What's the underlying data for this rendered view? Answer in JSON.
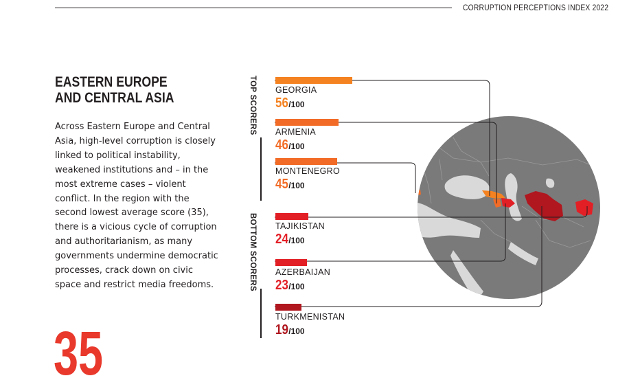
{
  "header": {
    "title": "CORRUPTION PERCEPTIONS INDEX 2022"
  },
  "section": {
    "title": "EASTERN EUROPE\nAND CENTRAL ASIA",
    "body": "Across Eastern Europe and Central Asia, high-level corruption is closely linked to political instability, weakened institutions and – in the most extreme cases – violent conflict. In the region with the second lowest average score (35), there is a vicious cycle of corruption and authoritarianism, as many governments undermine democratic processes, crack down on civic space and restrict media freedoms."
  },
  "page_number": "35",
  "top_scorers": {
    "label": "TOP SCORERS",
    "items": [
      {
        "country": "GEORGIA",
        "score": "56",
        "denominator": "/100",
        "value": 56,
        "color": "#f58220"
      },
      {
        "country": "ARMENIA",
        "score": "46",
        "denominator": "/100",
        "value": 46,
        "color": "#f26c27"
      },
      {
        "country": "MONTENEGRO",
        "score": "45",
        "denominator": "/100",
        "value": 45,
        "color": "#f26c27"
      }
    ]
  },
  "bottom_scorers": {
    "label": "BOTTOM SCORERS",
    "items": [
      {
        "country": "TAJIKISTAN",
        "score": "24",
        "denominator": "/100",
        "value": 24,
        "color": "#e31f26"
      },
      {
        "country": "AZERBAIJAN",
        "score": "23",
        "denominator": "/100",
        "value": 23,
        "color": "#e31f26"
      },
      {
        "country": "TURKMENISTAN",
        "score": "19",
        "denominator": "/100",
        "value": 19,
        "color": "#b0171f"
      }
    ]
  },
  "map": {
    "land_color": "#7a7a7a",
    "water_color": "#d9d9d9",
    "border_color": "#9a9a9a"
  }
}
